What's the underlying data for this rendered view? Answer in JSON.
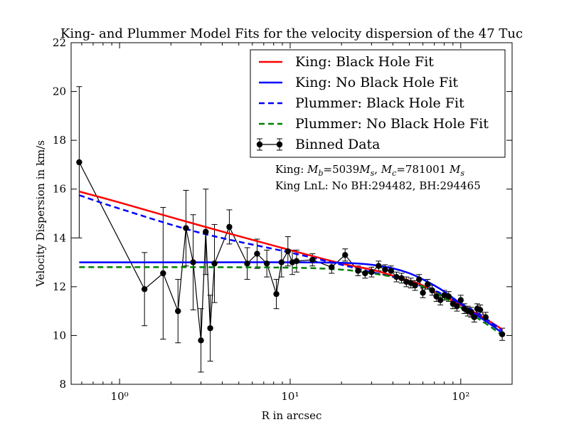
{
  "chart_data": {
    "type": "line",
    "title": "King- and Plummer Model Fits for the velocity dispersion of the 47 Tuc",
    "xlabel": "R in arcsec",
    "ylabel": "Velocity Dispersion in km/s",
    "xscale": "log",
    "xlim": [
      0.52,
      200
    ],
    "ylim": [
      8,
      22
    ],
    "x_ticks": [
      1,
      10,
      100
    ],
    "x_tick_labels": [
      "10⁰",
      "10¹",
      "10²"
    ],
    "y_ticks": [
      8,
      10,
      12,
      14,
      16,
      18,
      20,
      22
    ],
    "y_tick_labels": [
      "8",
      "10",
      "12",
      "14",
      "16",
      "18",
      "20",
      "22"
    ],
    "grid": false,
    "legend_position": "top-right",
    "legend": [
      {
        "label": "King: Black Hole Fit",
        "color": "#ff0000",
        "style": "solid"
      },
      {
        "label": "King: No Black Hole Fit",
        "color": "#0000ff",
        "style": "solid"
      },
      {
        "label": "Plummer: Black Hole Fit",
        "color": "#0000ff",
        "style": "dashed"
      },
      {
        "label": "Plummer: No Black Hole Fit",
        "color": "#008000",
        "style": "dashed"
      },
      {
        "label": "Binned Data",
        "color": "#000000",
        "style": "marker-line"
      }
    ],
    "annotations": [
      {
        "text": "King: Mb=5039Ms, Mc=781001 Ms"
      },
      {
        "text": "King LnL: No BH:294482, BH:294465"
      }
    ],
    "series": [
      {
        "name": "King: Black Hole Fit",
        "color": "#ff0000",
        "dash": false,
        "x": [
          0.58,
          1,
          3,
          10,
          20,
          30,
          40,
          50,
          60,
          70,
          80,
          100,
          120,
          150,
          175
        ],
        "y": [
          15.9,
          15.45,
          14.5,
          13.5,
          12.95,
          12.7,
          12.45,
          12.25,
          12.05,
          11.8,
          11.6,
          11.25,
          10.95,
          10.55,
          10.25
        ]
      },
      {
        "name": "King: No Black Hole Fit",
        "color": "#0000ff",
        "dash": false,
        "x": [
          0.58,
          1,
          3,
          10,
          20,
          30,
          40,
          50,
          60,
          70,
          80,
          100,
          120,
          150,
          175
        ],
        "y": [
          13.0,
          13.0,
          13.0,
          13.0,
          12.98,
          12.9,
          12.75,
          12.55,
          12.3,
          12.05,
          11.8,
          11.3,
          10.9,
          10.45,
          10.1
        ]
      },
      {
        "name": "Plummer: Black Hole Fit",
        "color": "#0000ff",
        "dash": true,
        "x": [
          0.58,
          1,
          3,
          10,
          20,
          30,
          40,
          50,
          60,
          70,
          80,
          100,
          120,
          150,
          175
        ],
        "y": [
          15.75,
          15.2,
          14.2,
          13.4,
          12.9,
          12.6,
          12.4,
          12.2,
          12.0,
          11.85,
          11.65,
          11.3,
          11.0,
          10.55,
          10.2
        ]
      },
      {
        "name": "Plummer: No Black Hole Fit",
        "color": "#008000",
        "dash": true,
        "x": [
          0.58,
          1,
          3,
          10,
          20,
          30,
          40,
          50,
          60,
          70,
          80,
          100,
          120,
          150,
          175
        ],
        "y": [
          12.8,
          12.8,
          12.8,
          12.78,
          12.7,
          12.55,
          12.4,
          12.2,
          12.0,
          11.8,
          11.55,
          11.15,
          10.8,
          10.35,
          10.0
        ]
      },
      {
        "name": "Binned Data",
        "color": "#000000",
        "points": [
          {
            "x": 0.58,
            "y": 17.1,
            "err": 3.1
          },
          {
            "x": 1.4,
            "y": 11.9,
            "err": 1.5
          },
          {
            "x": 1.8,
            "y": 12.55,
            "err": 2.7
          },
          {
            "x": 2.2,
            "y": 11.0,
            "err": 1.3
          },
          {
            "x": 2.45,
            "y": 14.4,
            "err": 1.55
          },
          {
            "x": 2.7,
            "y": 13.0,
            "err": 1.95
          },
          {
            "x": 3.0,
            "y": 9.8,
            "err": 1.3
          },
          {
            "x": 3.2,
            "y": 14.25,
            "err": 1.75
          },
          {
            "x": 3.4,
            "y": 10.3,
            "err": 1.35
          },
          {
            "x": 3.6,
            "y": 12.95,
            "err": 1.6
          },
          {
            "x": 4.4,
            "y": 14.45,
            "err": 0.7
          },
          {
            "x": 5.6,
            "y": 12.95,
            "err": 0.65
          },
          {
            "x": 6.4,
            "y": 13.35,
            "err": 0.6
          },
          {
            "x": 7.3,
            "y": 12.95,
            "err": 0.55
          },
          {
            "x": 8.3,
            "y": 11.7,
            "err": 0.6
          },
          {
            "x": 8.9,
            "y": 13.0,
            "err": 0.6
          },
          {
            "x": 9.7,
            "y": 13.45,
            "err": 0.6
          },
          {
            "x": 10.3,
            "y": 13.0,
            "err": 0.5
          },
          {
            "x": 10.9,
            "y": 13.05,
            "err": 0.45
          },
          {
            "x": 13.5,
            "y": 13.1,
            "err": 0.25
          },
          {
            "x": 17.5,
            "y": 12.8,
            "err": 0.25
          },
          {
            "x": 21.0,
            "y": 13.3,
            "err": 0.25
          },
          {
            "x": 25.0,
            "y": 12.65,
            "err": 0.2
          },
          {
            "x": 27.5,
            "y": 12.55,
            "err": 0.2
          },
          {
            "x": 30.0,
            "y": 12.6,
            "err": 0.2
          },
          {
            "x": 33.0,
            "y": 12.85,
            "err": 0.2
          },
          {
            "x": 36.0,
            "y": 12.7,
            "err": 0.2
          },
          {
            "x": 39.0,
            "y": 12.65,
            "err": 0.2
          },
          {
            "x": 42.0,
            "y": 12.4,
            "err": 0.2
          },
          {
            "x": 45.0,
            "y": 12.35,
            "err": 0.2
          },
          {
            "x": 48.0,
            "y": 12.2,
            "err": 0.2
          },
          {
            "x": 51.0,
            "y": 12.15,
            "err": 0.2
          },
          {
            "x": 54.0,
            "y": 12.05,
            "err": 0.2
          },
          {
            "x": 57.0,
            "y": 12.3,
            "err": 0.2
          },
          {
            "x": 60.0,
            "y": 11.75,
            "err": 0.2
          },
          {
            "x": 64.0,
            "y": 12.1,
            "err": 0.2
          },
          {
            "x": 68.0,
            "y": 11.85,
            "err": 0.2
          },
          {
            "x": 72.0,
            "y": 11.6,
            "err": 0.2
          },
          {
            "x": 76.0,
            "y": 11.45,
            "err": 0.2
          },
          {
            "x": 80.0,
            "y": 11.65,
            "err": 0.2
          },
          {
            "x": 85.0,
            "y": 11.6,
            "err": 0.2
          },
          {
            "x": 90.0,
            "y": 11.3,
            "err": 0.2
          },
          {
            "x": 95.0,
            "y": 11.2,
            "err": 0.2
          },
          {
            "x": 100.0,
            "y": 11.45,
            "err": 0.2
          },
          {
            "x": 105.0,
            "y": 11.1,
            "err": 0.2
          },
          {
            "x": 110.0,
            "y": 11.0,
            "err": 0.2
          },
          {
            "x": 115.0,
            "y": 10.95,
            "err": 0.2
          },
          {
            "x": 120.0,
            "y": 10.75,
            "err": 0.2
          },
          {
            "x": 125.0,
            "y": 11.1,
            "err": 0.2
          },
          {
            "x": 130.0,
            "y": 11.05,
            "err": 0.2
          },
          {
            "x": 140.0,
            "y": 10.75,
            "err": 0.2
          },
          {
            "x": 175.0,
            "y": 10.05,
            "err": 0.25
          }
        ]
      }
    ]
  }
}
